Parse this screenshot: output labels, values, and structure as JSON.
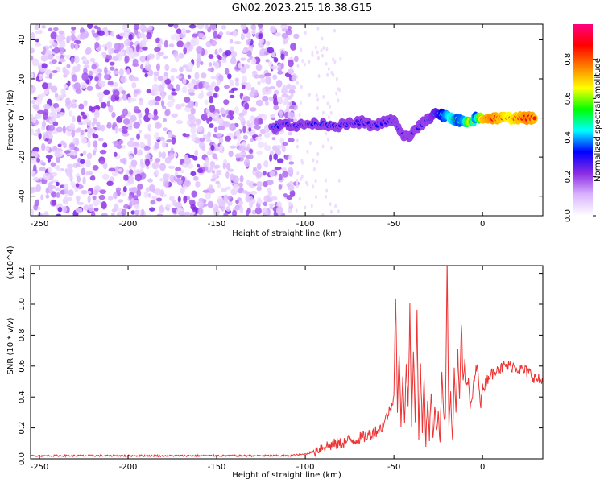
{
  "title": "GN02.2023.215.18.38.G15",
  "chart_data": [
    {
      "type": "heatmap",
      "xlabel": "Height of straight line (km)",
      "ylabel": "Frequency (Hz)",
      "xlim": [
        -255,
        34
      ],
      "ylim": [
        -50,
        48
      ],
      "x_ticks": [
        -250,
        -200,
        -150,
        -100,
        -50,
        0
      ],
      "x_tick_labels": [
        "-250",
        "-200",
        "-150",
        "-100",
        "-50",
        "0"
      ],
      "y_ticks": [
        -40,
        -20,
        0,
        20,
        40
      ],
      "y_tick_labels": [
        "-40",
        "-20",
        "0",
        "20",
        "40"
      ],
      "colorbar": {
        "label": "Normalized spectral amplitude",
        "range": [
          0.0,
          0.98
        ],
        "ticks": [
          0.0,
          0.2,
          0.4,
          0.6,
          0.8
        ],
        "tick_labels": [
          "0.0",
          "0.2",
          "0.4",
          "0.6",
          "0.8"
        ],
        "colormap": [
          "#ffffff",
          "#d9b3ff",
          "#8a2be2",
          "#0000ff",
          "#00ffff",
          "#00ff00",
          "#ffff00",
          "#ff8000",
          "#ff0000",
          "#ff0080"
        ]
      },
      "noise_region_x": [
        -255,
        -105
      ],
      "sparse_noise_x": [
        -105,
        -80
      ],
      "signal_track": [
        {
          "x": -118,
          "y": -5,
          "amp": 0.35
        },
        {
          "x": -112,
          "y": -3,
          "amp": 0.3
        },
        {
          "x": -105,
          "y": -4,
          "amp": 0.3
        },
        {
          "x": -98,
          "y": -3,
          "amp": 0.3
        },
        {
          "x": -90,
          "y": -3,
          "amp": 0.35
        },
        {
          "x": -82,
          "y": -4,
          "amp": 0.3
        },
        {
          "x": -75,
          "y": -3,
          "amp": 0.3
        },
        {
          "x": -68,
          "y": -2,
          "amp": 0.3
        },
        {
          "x": -62,
          "y": -4,
          "amp": 0.32
        },
        {
          "x": -55,
          "y": -2,
          "amp": 0.3
        },
        {
          "x": -50,
          "y": -1,
          "amp": 0.35
        },
        {
          "x": -46,
          "y": -8,
          "amp": 0.3
        },
        {
          "x": -42,
          "y": -10,
          "amp": 0.32
        },
        {
          "x": -38,
          "y": -6,
          "amp": 0.3
        },
        {
          "x": -34,
          "y": -3,
          "amp": 0.3
        },
        {
          "x": -30,
          "y": 0,
          "amp": 0.35
        },
        {
          "x": -26,
          "y": 3,
          "amp": 0.4
        },
        {
          "x": -22,
          "y": 1,
          "amp": 0.5
        },
        {
          "x": -18,
          "y": 0,
          "amp": 0.6
        },
        {
          "x": -14,
          "y": -1,
          "amp": 0.5
        },
        {
          "x": -10,
          "y": -2,
          "amp": 0.55
        },
        {
          "x": -7,
          "y": -3,
          "amp": 0.8
        },
        {
          "x": -4,
          "y": 0,
          "amp": 0.5
        },
        {
          "x": 0,
          "y": 0,
          "amp": 0.85
        },
        {
          "x": 5,
          "y": 0,
          "amp": 0.9
        },
        {
          "x": 10,
          "y": 0,
          "amp": 0.85
        },
        {
          "x": 15,
          "y": 0,
          "amp": 0.8
        },
        {
          "x": 20,
          "y": 0,
          "amp": 0.85
        },
        {
          "x": 25,
          "y": 0,
          "amp": 0.9
        },
        {
          "x": 30,
          "y": 0,
          "amp": 0.85
        }
      ]
    },
    {
      "type": "line",
      "xlabel": "Height of straight line (km)",
      "ylabel": "SNR (10 * v/v)",
      "y_multiplier": "(x10^4)",
      "xlim": [
        -255,
        34
      ],
      "ylim": [
        0.0,
        1.25
      ],
      "x_ticks": [
        -250,
        -200,
        -150,
        -100,
        -50,
        0
      ],
      "x_tick_labels": [
        "-250",
        "-200",
        "-150",
        "-100",
        "-50",
        "0"
      ],
      "y_ticks": [
        0.0,
        0.2,
        0.4,
        0.6,
        0.8,
        1.0,
        1.2
      ],
      "y_tick_labels": [
        "0.0",
        "0.2",
        "0.4",
        "0.6",
        "0.8",
        "1.0",
        "1.2"
      ],
      "line_color": "#ee3333",
      "series": [
        {
          "x": [
            -255,
            -240,
            -220,
            -200,
            -180,
            -160,
            -140,
            -120,
            -110,
            -100,
            -95,
            -90,
            -85,
            -80,
            -75,
            -70,
            -65,
            -60,
            -57,
            -55,
            -53,
            -51,
            -50,
            -49,
            -48,
            -47,
            -46,
            -45,
            -44,
            -43,
            -42,
            -41,
            -40,
            -39,
            -38,
            -37,
            -36,
            -35,
            -34,
            -33,
            -32,
            -31,
            -30,
            -29,
            -28,
            -27,
            -26,
            -25,
            -24,
            -23,
            -22,
            -21,
            -20,
            -19,
            -18,
            -17,
            -16,
            -15,
            -14,
            -13,
            -12,
            -11,
            -10,
            -9,
            -8,
            -7,
            -6,
            -5,
            -4,
            -3,
            -2,
            -1,
            0,
            2,
            4,
            6,
            8,
            10,
            12,
            15,
            18,
            21,
            24,
            27,
            30,
            34
          ],
          "y": [
            0.02,
            0.02,
            0.02,
            0.02,
            0.02,
            0.02,
            0.02,
            0.02,
            0.02,
            0.03,
            0.05,
            0.08,
            0.09,
            0.1,
            0.12,
            0.13,
            0.15,
            0.18,
            0.2,
            0.25,
            0.3,
            0.35,
            0.45,
            1.07,
            0.3,
            0.7,
            0.2,
            0.55,
            0.25,
            0.6,
            0.35,
            0.98,
            0.2,
            0.7,
            0.25,
            0.95,
            0.15,
            0.6,
            0.2,
            0.5,
            0.1,
            0.4,
            0.15,
            0.45,
            0.1,
            0.35,
            0.2,
            0.3,
            0.12,
            0.55,
            0.3,
            0.25,
            1.25,
            0.2,
            0.4,
            0.1,
            0.55,
            0.3,
            0.7,
            0.4,
            0.9,
            0.5,
            0.65,
            0.45,
            0.5,
            0.35,
            0.35,
            0.5,
            0.55,
            0.6,
            0.5,
            0.35,
            0.45,
            0.5,
            0.55,
            0.55,
            0.6,
            0.58,
            0.6,
            0.6,
            0.6,
            0.58,
            0.57,
            0.55,
            0.52,
            0.5
          ]
        }
      ]
    }
  ]
}
